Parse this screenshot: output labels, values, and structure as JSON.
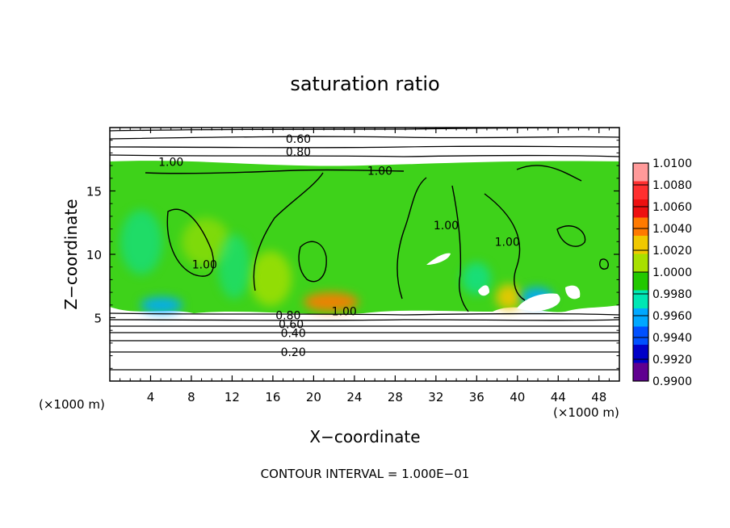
{
  "chart_data": {
    "type": "heatmap",
    "title": "saturation ratio",
    "xlabel": "X−coordinate",
    "ylabel": "Z−coordinate",
    "x_unit_left": "(×1000 m)",
    "x_unit_right": "(×1000 m)",
    "xlim": [
      0,
      50
    ],
    "ylim": [
      0,
      20
    ],
    "x_ticks": [
      4,
      8,
      12,
      16,
      20,
      24,
      28,
      32,
      36,
      40,
      44,
      48
    ],
    "y_ticks": [
      5,
      10,
      15
    ],
    "footnote": "CONTOUR INTERVAL = 1.000E−01",
    "colorbar": {
      "levels": [
        "1.0100",
        "1.0080",
        "1.0060",
        "1.0040",
        "1.0020",
        "1.0000",
        "0.9980",
        "0.9960",
        "0.9940",
        "0.9920",
        "0.9900"
      ],
      "colors": [
        "#ff9a9a",
        "#ff3030",
        "#ee1010",
        "#ff7a00",
        "#f0c800",
        "#a8e000",
        "#22c800",
        "#00e6b4",
        "#00a8ff",
        "#0050ff",
        "#0000c8",
        "#600090"
      ]
    },
    "contour_labels": [
      {
        "text": "0.60",
        "x": 18.5,
        "z": 19.1
      },
      {
        "text": "0.80",
        "x": 18.5,
        "z": 18.1
      },
      {
        "text": "1.00",
        "x": 6.0,
        "z": 17.3
      },
      {
        "text": "1.00",
        "x": 26.5,
        "z": 16.6
      },
      {
        "text": "1.00",
        "x": 9.3,
        "z": 9.2
      },
      {
        "text": "1.00",
        "x": 33.0,
        "z": 12.3
      },
      {
        "text": "1.00",
        "x": 39.0,
        "z": 11.0
      },
      {
        "text": "1.00",
        "x": 23.0,
        "z": 5.5
      },
      {
        "text": "0.80",
        "x": 17.5,
        "z": 5.2
      },
      {
        "text": "0.60",
        "x": 17.8,
        "z": 4.5
      },
      {
        "text": "0.40",
        "x": 18.0,
        "z": 3.8
      },
      {
        "text": "0.20",
        "x": 18.0,
        "z": 2.3
      }
    ]
  }
}
